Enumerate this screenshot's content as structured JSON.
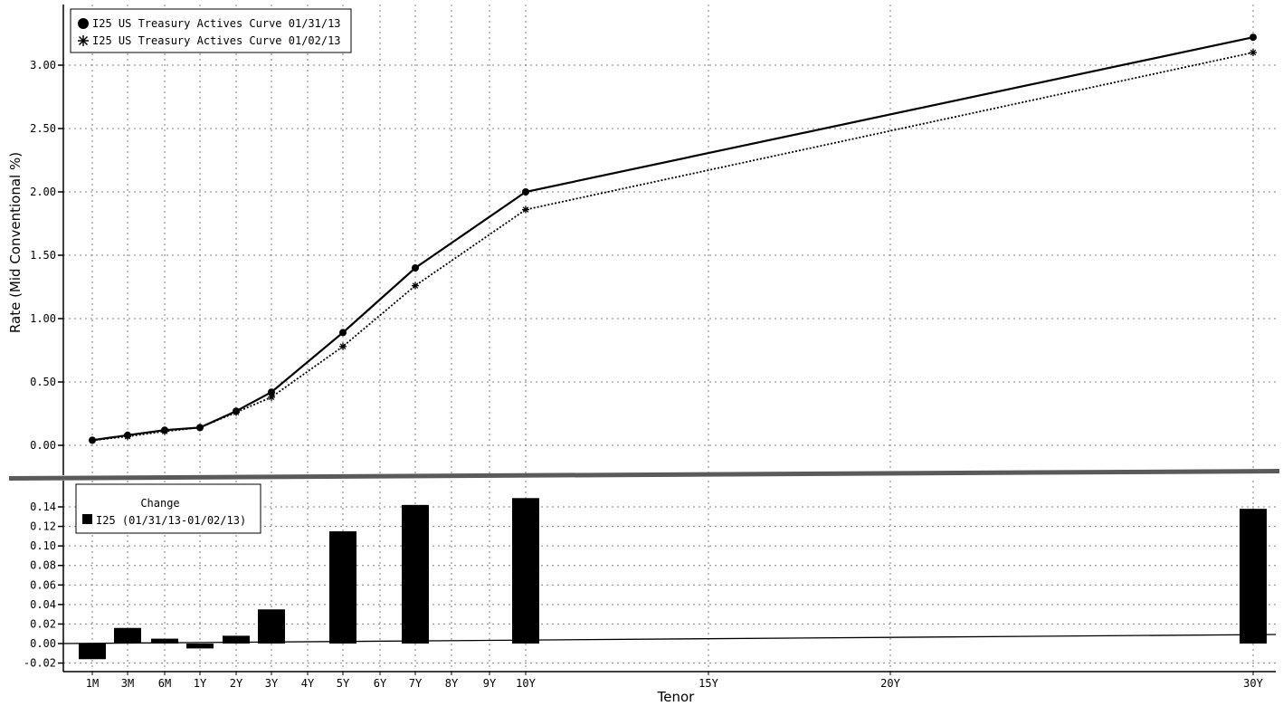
{
  "chart_data": [
    {
      "type": "line",
      "ylabel": "Rate (Mid Conventional %)",
      "ylim": [
        -0.1,
        3.35
      ],
      "yticks": [
        "0.00",
        "0.50",
        "1.00",
        "1.50",
        "2.00",
        "2.50",
        "3.00"
      ],
      "grid": true,
      "legend_position": "top-left",
      "series": [
        {
          "name": "I25 US Treasury Actives Curve 01/31/13",
          "marker": "circle",
          "line_style": "solid",
          "points": [
            {
              "tenor": "1M",
              "y": 0.04
            },
            {
              "tenor": "3M",
              "y": 0.08
            },
            {
              "tenor": "6M",
              "y": 0.12
            },
            {
              "tenor": "1Y",
              "y": 0.14
            },
            {
              "tenor": "2Y",
              "y": 0.27
            },
            {
              "tenor": "3Y",
              "y": 0.42
            },
            {
              "tenor": "5Y",
              "y": 0.89
            },
            {
              "tenor": "7Y",
              "y": 1.4
            },
            {
              "tenor": "10Y",
              "y": 2.0
            },
            {
              "tenor": "30Y",
              "y": 3.22
            }
          ]
        },
        {
          "name": "I25 US Treasury Actives Curve 01/02/13",
          "marker": "star",
          "line_style": "dotted",
          "points": [
            {
              "tenor": "1M",
              "y": 0.04
            },
            {
              "tenor": "3M",
              "y": 0.07
            },
            {
              "tenor": "6M",
              "y": 0.11
            },
            {
              "tenor": "1Y",
              "y": 0.14
            },
            {
              "tenor": "2Y",
              "y": 0.26
            },
            {
              "tenor": "3Y",
              "y": 0.38
            },
            {
              "tenor": "5Y",
              "y": 0.78
            },
            {
              "tenor": "7Y",
              "y": 1.26
            },
            {
              "tenor": "10Y",
              "y": 1.86
            },
            {
              "tenor": "30Y",
              "y": 3.1
            }
          ]
        }
      ]
    },
    {
      "type": "bar",
      "xlabel": "Tenor",
      "ylim": [
        -0.024,
        0.157
      ],
      "yticks": [
        "-0.02",
        "0.00",
        "0.02",
        "0.04",
        "0.06",
        "0.08",
        "0.10",
        "0.12",
        "0.14"
      ],
      "grid": true,
      "legend_title": "Change",
      "legend_position": "top-left",
      "series": [
        {
          "name": "I25 (01/31/13-01/02/13)",
          "points": [
            {
              "tenor": "1M",
              "y": -0.016
            },
            {
              "tenor": "3M",
              "y": 0.016
            },
            {
              "tenor": "6M",
              "y": 0.005
            },
            {
              "tenor": "1Y",
              "y": -0.005
            },
            {
              "tenor": "2Y",
              "y": 0.008
            },
            {
              "tenor": "3Y",
              "y": 0.035
            },
            {
              "tenor": "5Y",
              "y": 0.115
            },
            {
              "tenor": "7Y",
              "y": 0.142
            },
            {
              "tenor": "10Y",
              "y": 0.149
            },
            {
              "tenor": "30Y",
              "y": 0.138
            }
          ]
        }
      ]
    }
  ],
  "x_axis": {
    "title": "Tenor",
    "labels": [
      "1M",
      "3M",
      "6M",
      "1Y",
      "2Y",
      "3Y",
      "4Y",
      "5Y",
      "6Y",
      "7Y",
      "8Y",
      "9Y",
      "10Y",
      "15Y",
      "20Y",
      "30Y"
    ]
  },
  "colors": {
    "series": "#000000",
    "grid": "#808080",
    "divider": "#5a5a5a",
    "background": "#ffffff"
  }
}
